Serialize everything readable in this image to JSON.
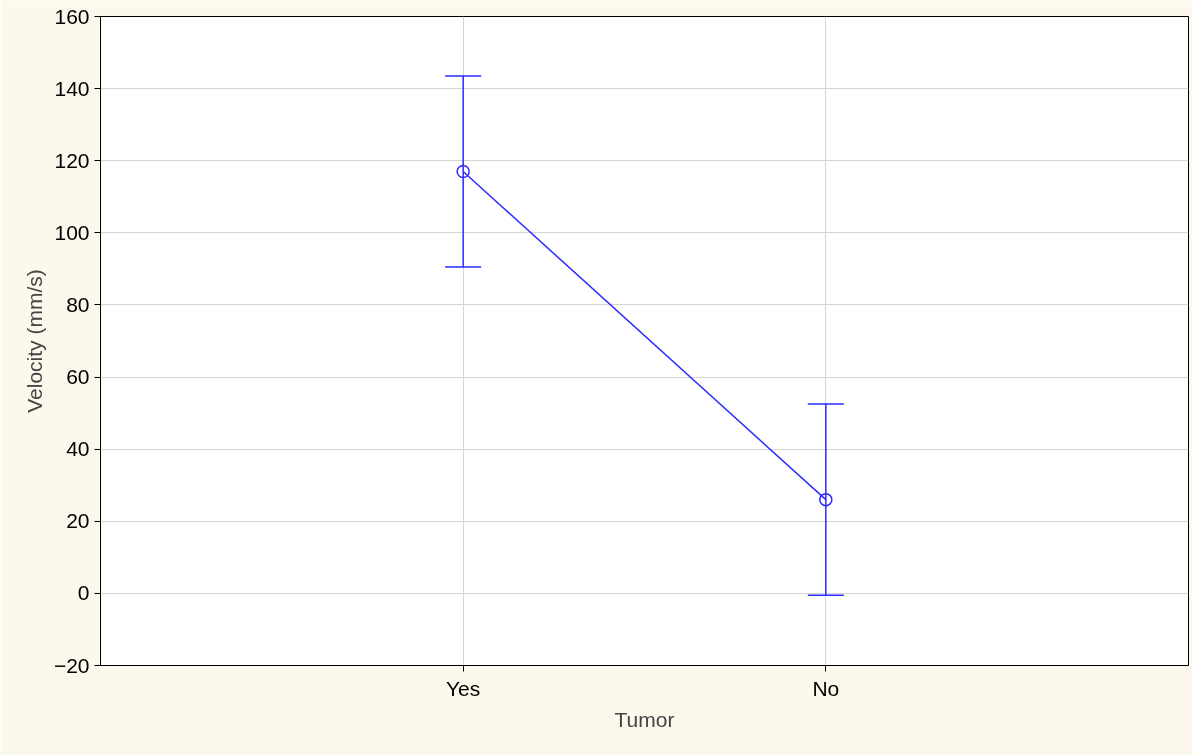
{
  "chart_data": {
    "type": "line",
    "xlabel": "Tumor",
    "ylabel": "Velocity (mm/s)",
    "categories": [
      "Yes",
      "No"
    ],
    "series": [
      {
        "color": "#2b2bff",
        "values": [
          117,
          26
        ],
        "errors": [
          26.5,
          26.5
        ]
      }
    ],
    "ylim": [
      -20,
      160
    ],
    "yticks": [
      -20,
      0,
      20,
      40,
      60,
      80,
      100,
      120,
      140,
      160
    ],
    "grid": true,
    "marker": "circle",
    "line_style": "solid"
  }
}
